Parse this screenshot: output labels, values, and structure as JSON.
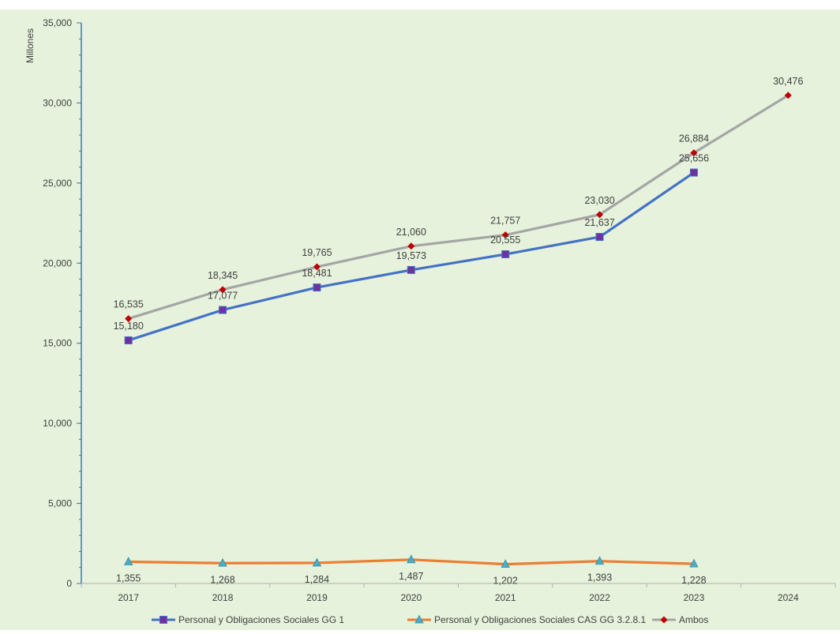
{
  "chart_data": {
    "type": "line",
    "ylabel": "Millones",
    "xlabel": "",
    "categories": [
      "2017",
      "2018",
      "2019",
      "2020",
      "2021",
      "2022",
      "2023",
      "2024"
    ],
    "ylim": [
      0,
      35000
    ],
    "yticks": [
      0,
      5000,
      10000,
      15000,
      20000,
      25000,
      30000,
      35000
    ],
    "ytick_labels": [
      "0",
      "5,000",
      "10,000",
      "15,000",
      "20,000",
      "25,000",
      "30,000",
      "35,000"
    ],
    "grid": false,
    "legend_position": "bottom",
    "background": "#e6f2dc",
    "series": [
      {
        "name": "Personal y Obligaciones Sociales GG 1",
        "values": [
          15180,
          17077,
          18481,
          19573,
          20555,
          21637,
          25656,
          null
        ],
        "labels": [
          "15,180",
          "17,077",
          "18,481",
          "19,573",
          "20,555",
          "21,637",
          "25,656",
          ""
        ],
        "line_color": "#4472c4",
        "marker": "square",
        "marker_color": "#7030a0"
      },
      {
        "name": "Personal y Obligaciones Sociales CAS GG 3.2.8.1",
        "values": [
          1355,
          1268,
          1284,
          1487,
          1202,
          1393,
          1228,
          null
        ],
        "labels": [
          "1,355",
          "1,268",
          "1,284",
          "1,487",
          "1,202",
          "1,393",
          "1,228",
          ""
        ],
        "line_color": "#ed7d31",
        "marker": "triangle",
        "marker_color": "#4bacc6"
      },
      {
        "name": "Ambos",
        "values": [
          16535,
          18345,
          19765,
          21060,
          21757,
          23030,
          26884,
          30476
        ],
        "labels": [
          "16,535",
          "18,345",
          "19,765",
          "21,060",
          "21,757",
          "23,030",
          "26,884",
          "30,476"
        ],
        "line_color": "#a5a5a5",
        "marker": "diamond",
        "marker_color": "#c00000"
      }
    ]
  }
}
